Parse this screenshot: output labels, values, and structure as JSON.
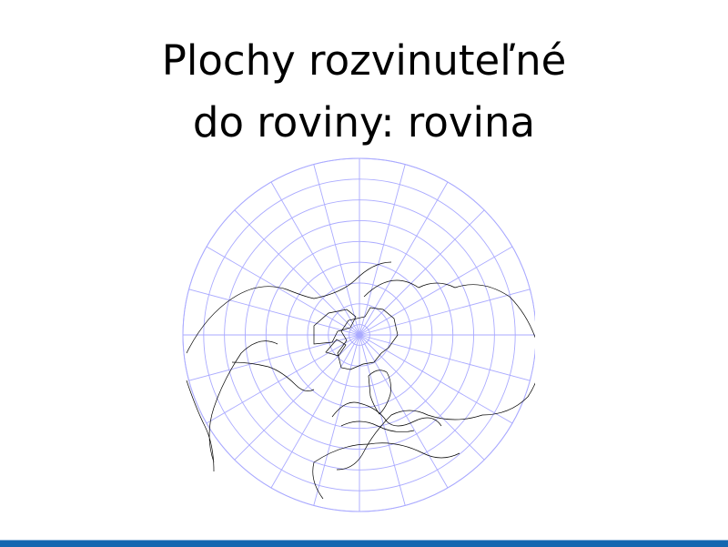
{
  "slide": {
    "title_line1": "Plochy rozvinuteľné",
    "title_line2": "do roviny: rovina"
  },
  "map": {
    "projection": "azimuthal polar (north pole centered)",
    "graticule_color": "#aaaaff",
    "coastline_color": "#000000",
    "parallel_step_deg": 10,
    "meridian_step_deg": 15
  },
  "footer": {
    "bar_color": "#1467b0"
  }
}
